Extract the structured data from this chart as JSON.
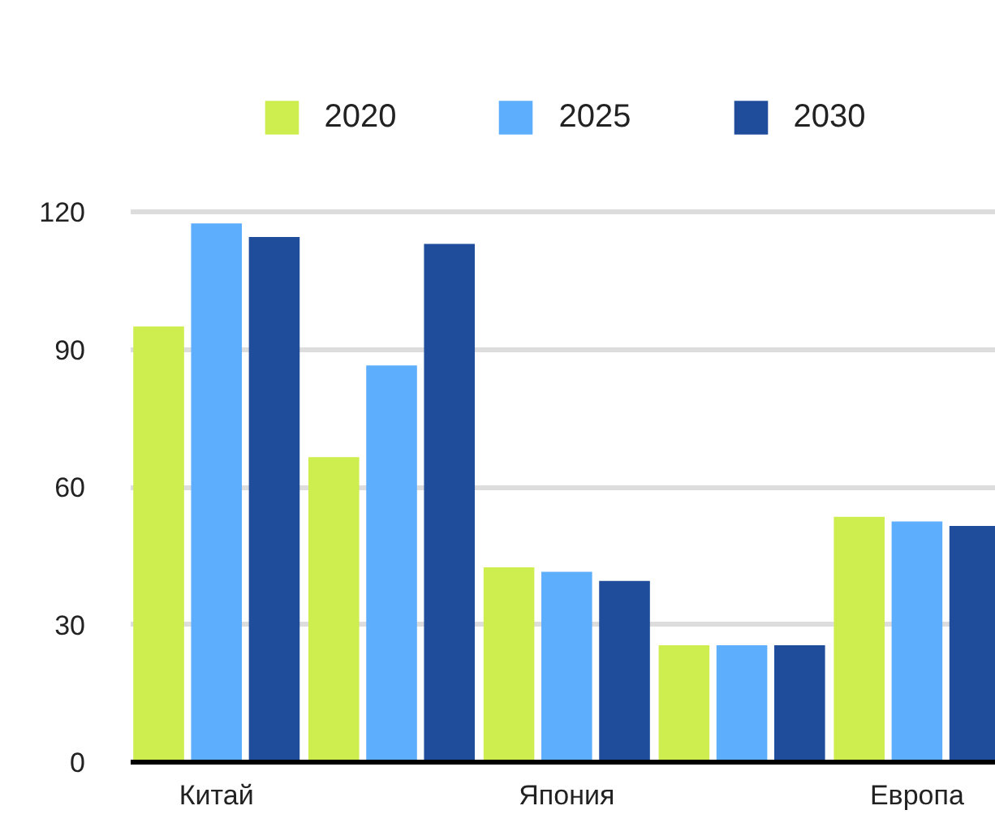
{
  "chart_data": {
    "type": "bar",
    "categories": [
      "Китай",
      null,
      "Япония",
      null,
      "Европа"
    ],
    "series": [
      {
        "name": "2020",
        "color": "#cdee4e",
        "values": [
          95,
          66.5,
          42.5,
          25.5,
          53.5
        ]
      },
      {
        "name": "2025",
        "color": "#5eaefe",
        "values": [
          117.5,
          86.5,
          41.5,
          25.5,
          52.5
        ]
      },
      {
        "name": "2030",
        "color": "#1f4d9c",
        "values": [
          114.5,
          113,
          39.5,
          25.5,
          51.5
        ]
      }
    ],
    "ylim": [
      0,
      120
    ],
    "yticks": [
      0,
      30,
      60,
      90,
      120
    ],
    "grid": "y",
    "legend": "top"
  }
}
